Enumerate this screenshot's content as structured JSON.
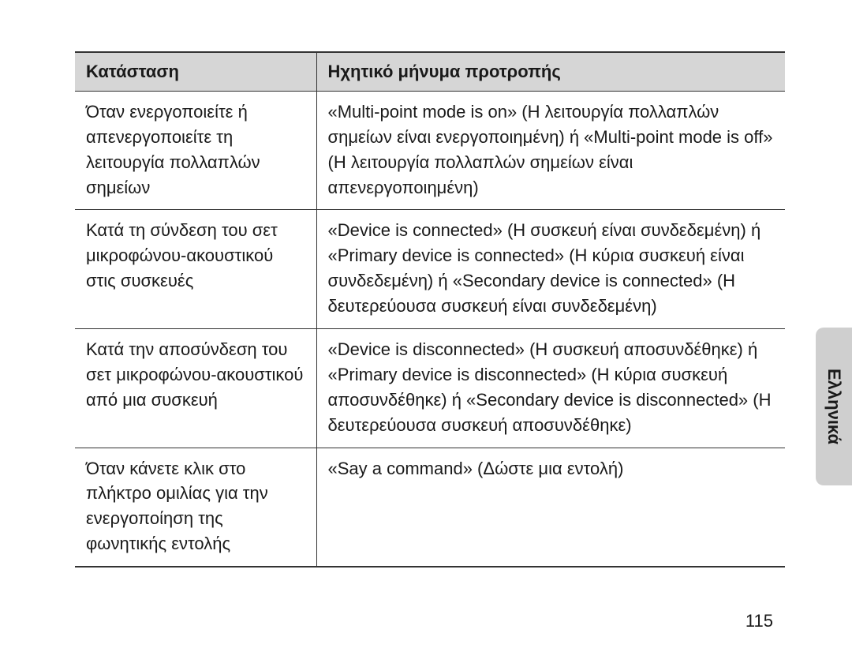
{
  "table": {
    "header": {
      "col1": "Κατάσταση",
      "col2": "Ηχητικό μήνυμα προτροπής"
    },
    "rows": [
      {
        "status": "Όταν ενεργοποιείτε ή απενεργοποιείτε τη λειτουργία πολλαπλών σημείων",
        "message": "«Multi-point mode is on» (Η λειτουργία πολλαπλών σημείων είναι ενεργοποιημένη) ή «Multi-point mode is off» (Η λειτουργία πολλαπλών σημείων είναι απενεργοποιημένη)"
      },
      {
        "status": "Κατά τη σύνδεση του σετ μικροφώνου-ακουστικού στις συσκευές",
        "message": "«Device is connected» (Η συσκευή είναι συνδεδεμένη) ή «Primary device is connected» (Η κύρια συσκευή είναι συνδεδεμένη) ή «Secondary device is connected» (Η δευτερεύουσα συσκευή είναι συνδεδεμένη)"
      },
      {
        "status": "Κατά την αποσύνδεση του σετ μικροφώνου-ακουστικού από μια συσκευή",
        "message": "«Device is disconnected» (Η συσκευή αποσυνδέθηκε) ή «Primary device is disconnected» (Η κύρια συσκευή αποσυνδέθηκε) ή «Secondary device is disconnected» (Η δευτερεύουσα συσκευή αποσυνδέθηκε)"
      },
      {
        "status": "Όταν κάνετε κλικ στο πλήκτρο ομιλίας για την ενεργοποίηση της φωνητικής εντολής",
        "message": "«Say a command» (Δώστε μια εντολή)"
      }
    ]
  },
  "sideTab": "Ελληνικά",
  "pageNumber": "115",
  "style": {
    "background_color": "#ffffff",
    "text_color": "#1a1a1a",
    "header_bg": "#d6d6d6",
    "border_color": "#333333",
    "side_tab_bg": "#cfcfcf",
    "font_size_body": 22,
    "font_size_tab": 22,
    "font_weight_header": 700,
    "col1_width_pct": 34,
    "line_height": 1.45
  }
}
